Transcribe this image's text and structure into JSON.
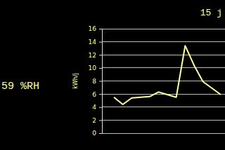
{
  "chart_data": {
    "type": "line",
    "annotations": [
      "59 %RH",
      "15 j"
    ],
    "y_label": "kWh/j",
    "categories": [
      null,
      null,
      null,
      null,
      null,
      null,
      null,
      null,
      null,
      null,
      null,
      null,
      null
    ],
    "values": [
      5.5,
      4.4,
      5.4,
      5.5,
      5.6,
      6.3,
      5.9,
      5.5,
      13.4,
      10.4,
      7.9,
      6.9,
      5.9
    ],
    "color": "#ffff99",
    "ylim": [
      0,
      16
    ],
    "yticks": [
      0,
      2,
      4,
      6,
      8,
      10,
      12,
      14,
      16
    ],
    "grid": true,
    "tick_labels": "y"
  }
}
